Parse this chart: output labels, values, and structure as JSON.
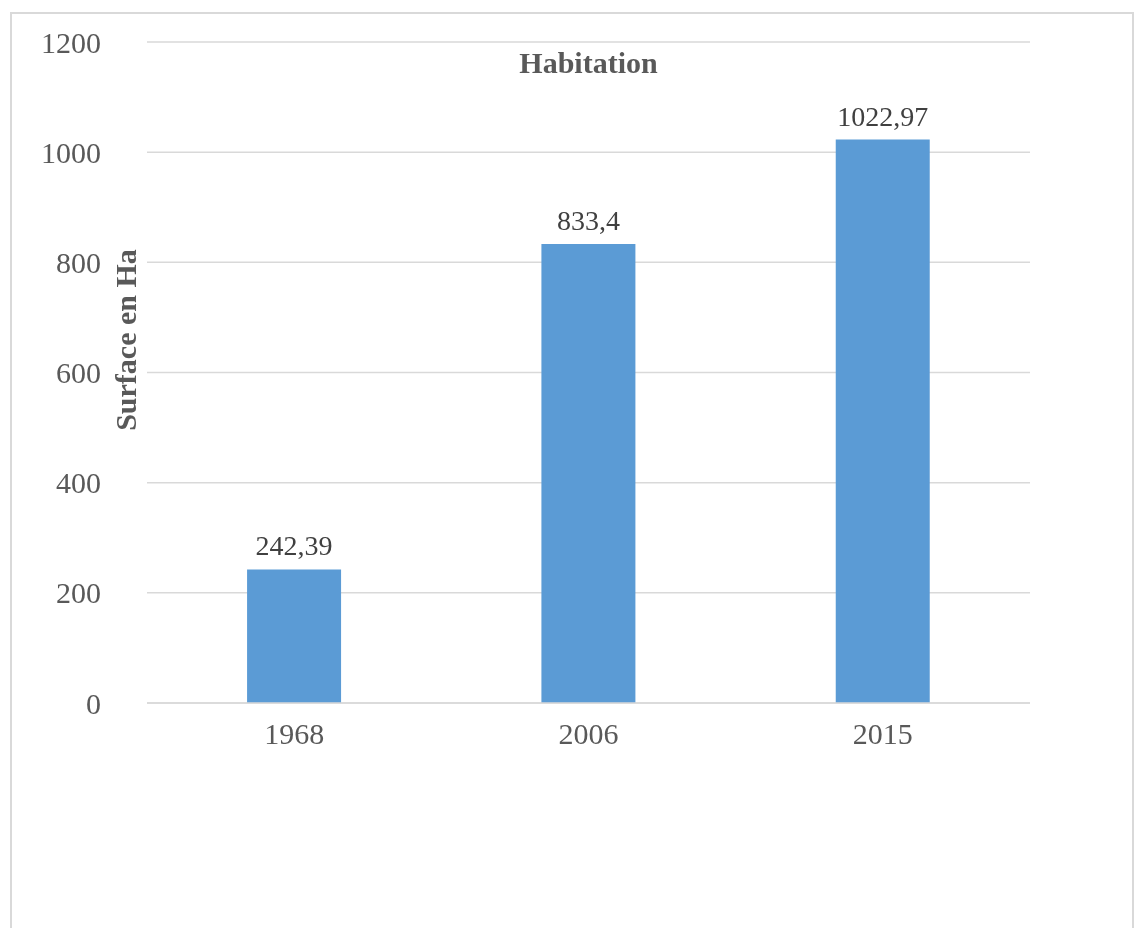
{
  "chart_data": {
    "type": "bar",
    "title": "Habitation",
    "ylabel": "Surface en Ha",
    "categories": [
      "1968",
      "2006",
      "2015"
    ],
    "values": [
      242.39,
      833.4,
      1022.97
    ],
    "value_labels": [
      "242,39",
      "833,4",
      "1022,97"
    ],
    "color": "#5b9bd5",
    "ylim": [
      0,
      1200
    ],
    "yticks": [
      0,
      200,
      400,
      600,
      800,
      1000,
      1200
    ],
    "grid": "y"
  }
}
